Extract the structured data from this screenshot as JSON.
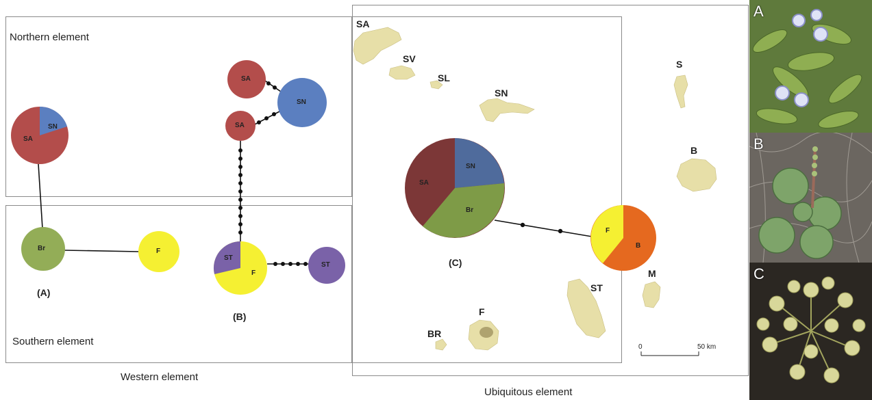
{
  "regions": {
    "northern": "Northern element",
    "southern": "Southern element",
    "western": "Western element",
    "ubiquitous": "Ubiquitous element"
  },
  "panels": {
    "a": "(A)",
    "b": "(B)",
    "c": "(C)"
  },
  "islands": {
    "sa": "SA",
    "sv": "SV",
    "sl": "SL",
    "sn": "SN",
    "s": "S",
    "b": "B",
    "m": "M",
    "st": "ST",
    "f": "F",
    "br": "BR"
  },
  "nodes": {
    "sa": "SA",
    "sn": "SN",
    "br_small": "Br",
    "br": "Br",
    "f": "F",
    "st": "ST",
    "b": "B"
  },
  "scale": {
    "start": "0",
    "end": "50 km"
  },
  "photos": {
    "a": "A",
    "b": "B",
    "c": "C"
  },
  "colors": {
    "sa": "#b34d4b",
    "sn": "#5b7fc0",
    "br": "#93ad57",
    "f": "#f5f032",
    "st": "#7a62a8",
    "b": "#e5691f",
    "island": "#e7e0aa",
    "sa_c": "#7e3434",
    "sn_c": "#4e6a9a",
    "br_c": "#7c9a46"
  }
}
